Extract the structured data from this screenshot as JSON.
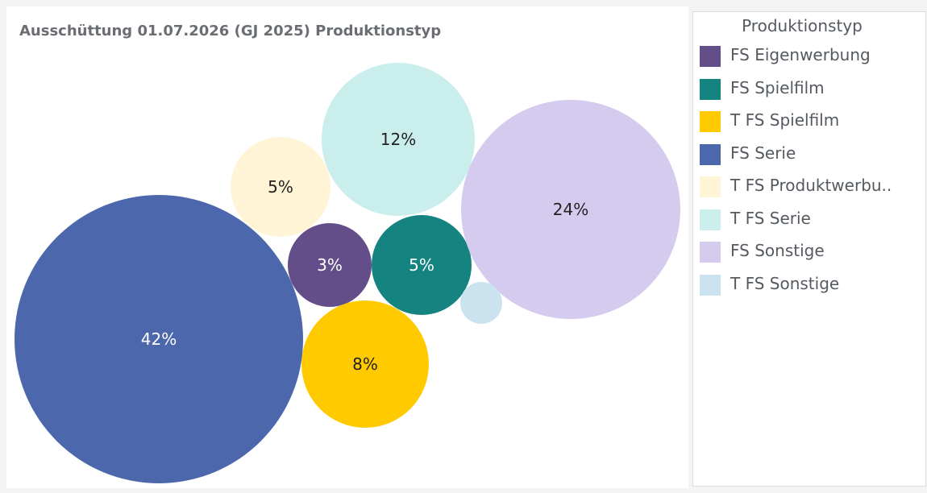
{
  "chart_data": {
    "type": "bubble",
    "title": "Ausschüttung 01.07.2026 (GJ 2025) Produktionstyp",
    "legend_title": "Produktionstyp",
    "legend_position": "right",
    "series": [
      {
        "name": "FS Eigenwerbung",
        "color": "#634e8a",
        "label": "3%",
        "value": 3
      },
      {
        "name": "FS Spielfilm",
        "color": "#158481",
        "label": "5%",
        "value": 5
      },
      {
        "name": "T FS Spielfilm",
        "color": "#ffca00",
        "label": "8%",
        "value": 8
      },
      {
        "name": "FS Serie",
        "color": "#4c67ab",
        "label": "42%",
        "value": 42
      },
      {
        "name": "T FS Produktwerbu..",
        "color": "#fff5d6",
        "label": "5%",
        "value": 5
      },
      {
        "name": "T FS Serie",
        "color": "#c9eeec",
        "label": "12%",
        "value": 12
      },
      {
        "name": "FS Sonstige",
        "color": "#d5cbee",
        "label": "24%",
        "value": 24
      },
      {
        "name": "T FS Sonstige",
        "color": "#cbe2ef",
        "label": "",
        "value": 1
      }
    ]
  }
}
